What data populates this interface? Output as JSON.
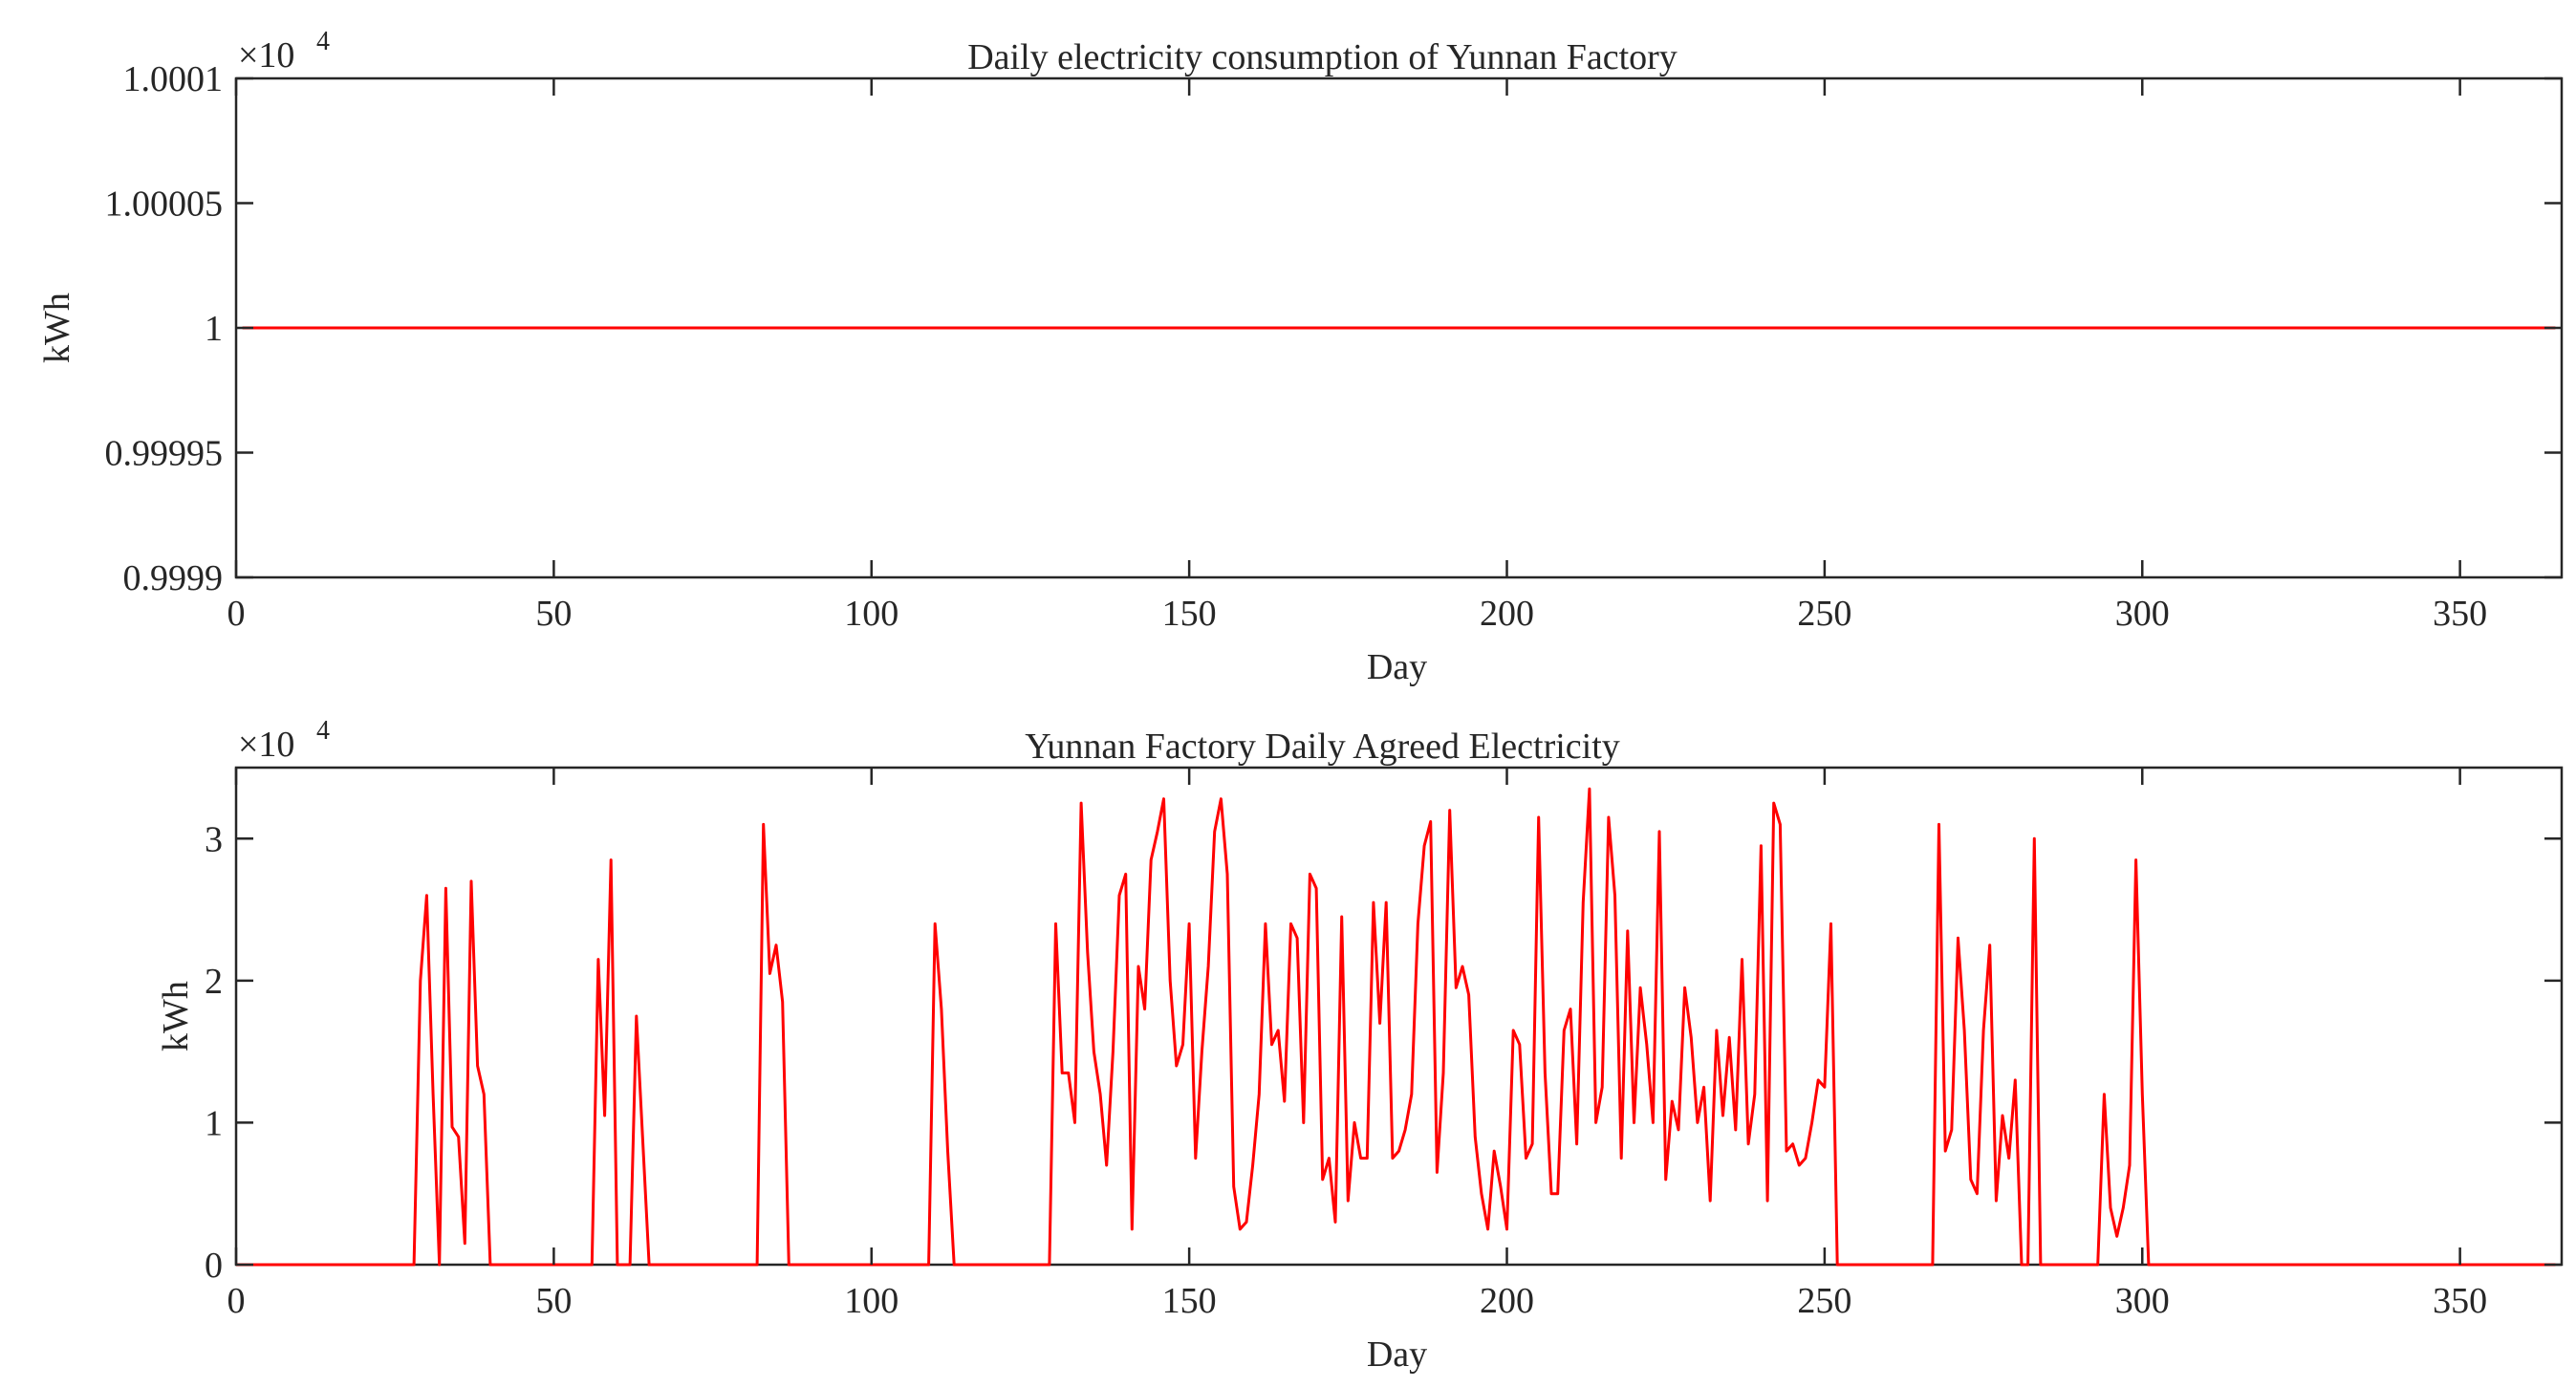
{
  "chart_data": [
    {
      "type": "line",
      "title": "Daily electricity consumption of Yunnan Factory",
      "xlabel": "Day",
      "ylabel": "kWh",
      "exponent_label": "×10",
      "exponent_power": "4",
      "xlim": [
        0,
        366
      ],
      "ylim": [
        0.9999,
        1.0001
      ],
      "x_ticks": [
        0,
        50,
        100,
        150,
        200,
        250,
        300,
        350
      ],
      "x_tick_labels": [
        "0",
        "50",
        "100",
        "150",
        "200",
        "250",
        "300",
        "350"
      ],
      "y_ticks": [
        0.9999,
        0.99995,
        1,
        1.00005,
        1.0001
      ],
      "y_tick_labels": [
        "0.9999",
        "0.99995",
        "1",
        "1.00005",
        "1.0001"
      ],
      "grid": false,
      "line_color": "#ff0000",
      "series": [
        {
          "x": [
            1,
            365
          ],
          "values": [
            1,
            1
          ]
        }
      ]
    },
    {
      "type": "line",
      "title": "Yunnan Factory Daily Agreed Electricity",
      "xlabel": "Day",
      "ylabel": "kWh",
      "exponent_label": "×10",
      "exponent_power": "4",
      "xlim": [
        0,
        366
      ],
      "ylim": [
        0,
        3.5
      ],
      "x_ticks": [
        0,
        50,
        100,
        150,
        200,
        250,
        300,
        350
      ],
      "x_tick_labels": [
        "0",
        "50",
        "100",
        "150",
        "200",
        "250",
        "300",
        "350"
      ],
      "y_ticks": [
        0,
        1,
        2,
        3
      ],
      "y_tick_labels": [
        "0",
        "1",
        "2",
        "3"
      ],
      "grid": false,
      "line_color": "#ff0000",
      "series": [
        {
          "x": [
            0,
            28,
            29,
            30,
            31,
            32,
            33,
            34,
            35,
            36,
            37,
            38,
            39,
            40,
            56,
            57,
            58,
            59,
            60,
            62,
            63,
            65,
            82,
            83,
            84,
            85,
            86,
            87,
            109,
            110,
            111,
            112,
            113,
            128,
            129,
            130,
            131,
            132,
            133,
            134,
            135,
            136,
            137,
            138,
            139,
            140,
            141,
            142,
            143,
            144,
            145,
            146,
            147,
            148,
            149,
            150,
            151,
            152,
            153,
            154,
            155,
            156,
            157,
            158,
            159,
            160,
            161,
            162,
            163,
            164,
            165,
            166,
            167,
            168,
            169,
            170,
            171,
            172,
            173,
            174,
            175,
            176,
            177,
            178,
            179,
            180,
            181,
            182,
            183,
            184,
            185,
            186,
            187,
            188,
            189,
            190,
            191,
            192,
            193,
            194,
            195,
            196,
            197,
            198,
            199,
            200,
            201,
            202,
            203,
            204,
            205,
            206,
            207,
            208,
            209,
            210,
            211,
            212,
            213,
            214,
            215,
            216,
            217,
            218,
            219,
            220,
            221,
            222,
            223,
            224,
            225,
            226,
            227,
            228,
            229,
            230,
            231,
            232,
            233,
            234,
            235,
            236,
            237,
            238,
            239,
            240,
            241,
            242,
            243,
            244,
            245,
            246,
            247,
            248,
            249,
            250,
            251,
            252,
            253,
            267,
            268,
            269,
            270,
            271,
            272,
            273,
            274,
            275,
            276,
            277,
            278,
            279,
            280,
            281,
            282,
            283,
            284,
            293,
            294,
            295,
            296,
            297,
            298,
            299,
            300,
            301,
            365
          ],
          "values": [
            0,
            0,
            2.0,
            2.6,
            1.2,
            0,
            2.65,
            0.97,
            0.9,
            0.15,
            2.7,
            1.4,
            1.2,
            0,
            0,
            2.15,
            1.05,
            2.85,
            0,
            0,
            1.75,
            0,
            0,
            3.1,
            2.05,
            2.25,
            1.85,
            0,
            0,
            2.4,
            1.8,
            0.8,
            0,
            0,
            2.4,
            1.35,
            1.35,
            1.0,
            3.25,
            2.2,
            1.5,
            1.2,
            0.7,
            1.5,
            2.6,
            2.75,
            0.25,
            2.1,
            1.8,
            2.85,
            3.05,
            3.28,
            2.0,
            1.4,
            1.55,
            2.4,
            0.75,
            1.5,
            2.1,
            3.05,
            3.28,
            2.75,
            0.55,
            0.25,
            0.3,
            0.7,
            1.2,
            2.4,
            1.55,
            1.65,
            1.15,
            2.4,
            2.3,
            1.0,
            2.75,
            2.65,
            0.6,
            0.75,
            0.3,
            2.45,
            0.45,
            1.0,
            0.75,
            0.75,
            2.55,
            1.7,
            2.55,
            0.75,
            0.8,
            0.95,
            1.2,
            2.4,
            2.95,
            3.12,
            0.65,
            1.35,
            3.2,
            1.95,
            2.1,
            1.9,
            0.9,
            0.5,
            0.25,
            0.8,
            0.55,
            0.25,
            1.65,
            1.55,
            0.75,
            0.85,
            3.15,
            1.35,
            0.5,
            0.5,
            1.65,
            1.8,
            0.85,
            2.55,
            3.35,
            1.0,
            1.25,
            3.15,
            2.6,
            0.75,
            2.35,
            1.0,
            1.95,
            1.55,
            1.0,
            3.05,
            0.6,
            1.15,
            0.95,
            1.95,
            1.6,
            1.0,
            1.25,
            0.45,
            1.65,
            1.05,
            1.6,
            0.95,
            2.15,
            0.85,
            1.2,
            2.95,
            0.45,
            3.25,
            3.1,
            0.8,
            0.85,
            0.7,
            0.75,
            1.0,
            1.3,
            1.25,
            2.4,
            0,
            0,
            0,
            3.1,
            0.8,
            0.95,
            2.3,
            1.65,
            0.6,
            0.5,
            1.65,
            2.25,
            0.45,
            1.05,
            0.75,
            1.3,
            0,
            0,
            3.0,
            0,
            0,
            1.2,
            0.4,
            0.2,
            0.4,
            0.7,
            2.85,
            1.2,
            0,
            0
          ]
        }
      ]
    }
  ]
}
